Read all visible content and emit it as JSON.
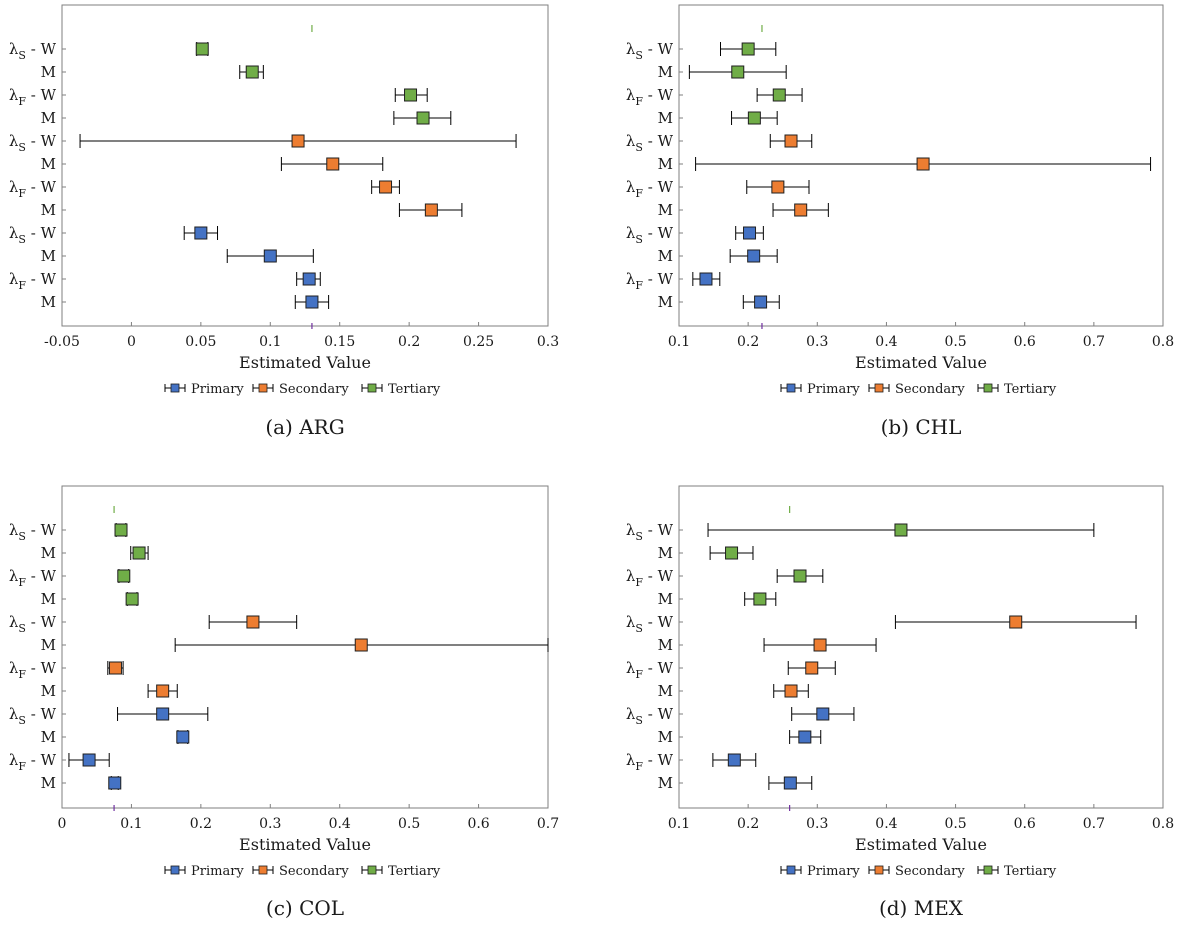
{
  "colors": {
    "primary": "#4472c4",
    "secondary": "#ed7d31",
    "tertiary": "#70ad47",
    "frame": "#7f7f7f",
    "whisker": "#000000",
    "top_tick": "#70ad47",
    "bottom_tick": "#7030a0"
  },
  "chart_data": [
    {
      "type": "errorbar",
      "caption": "(a) ARG",
      "xlabel": "Estimated Value",
      "xlim": [
        -0.05,
        0.3
      ],
      "xticks": [
        -0.05,
        0,
        0.05,
        0.1,
        0.15,
        0.2,
        0.25,
        0.3
      ],
      "xtick_labels": [
        "-0.05",
        "0",
        "0.05",
        "0.1",
        "0.15",
        "0.2",
        "0.25",
        "0.3"
      ],
      "legend": [
        "Primary",
        "Secondary",
        "Tertiary"
      ],
      "legend_position": "bottom",
      "marker_line": 0.13,
      "rows": [
        {
          "sym": "λ",
          "sub": "S",
          "lbl": "W",
          "group": "Tertiary",
          "est": 0.051,
          "lo": 0.047,
          "hi": 0.055
        },
        {
          "lbl": "M",
          "group": "Tertiary",
          "est": 0.087,
          "lo": 0.078,
          "hi": 0.095
        },
        {
          "sym": "λ",
          "sub": "F",
          "lbl": "W",
          "group": "Tertiary",
          "est": 0.201,
          "lo": 0.19,
          "hi": 0.213
        },
        {
          "lbl": "M",
          "group": "Tertiary",
          "est": 0.21,
          "lo": 0.189,
          "hi": 0.23
        },
        {
          "sym": "λ",
          "sub": "S",
          "lbl": "W",
          "group": "Secondary",
          "est": 0.12,
          "lo": -0.037,
          "hi": 0.277
        },
        {
          "lbl": "M",
          "group": "Secondary",
          "est": 0.145,
          "lo": 0.108,
          "hi": 0.181
        },
        {
          "sym": "λ",
          "sub": "F",
          "lbl": "W",
          "group": "Secondary",
          "est": 0.183,
          "lo": 0.173,
          "hi": 0.193
        },
        {
          "lbl": "M",
          "group": "Secondary",
          "est": 0.216,
          "lo": 0.193,
          "hi": 0.238
        },
        {
          "sym": "λ",
          "sub": "S",
          "lbl": "W",
          "group": "Primary",
          "est": 0.05,
          "lo": 0.038,
          "hi": 0.062
        },
        {
          "lbl": "M",
          "group": "Primary",
          "est": 0.1,
          "lo": 0.069,
          "hi": 0.131
        },
        {
          "sym": "λ",
          "sub": "F",
          "lbl": "W",
          "group": "Primary",
          "est": 0.128,
          "lo": 0.119,
          "hi": 0.136
        },
        {
          "lbl": "M",
          "group": "Primary",
          "est": 0.13,
          "lo": 0.118,
          "hi": 0.142
        }
      ]
    },
    {
      "type": "errorbar",
      "caption": "(b) CHL",
      "xlabel": "Estimated Value",
      "xlim": [
        0.1,
        0.8
      ],
      "xticks": [
        0.1,
        0.2,
        0.3,
        0.4,
        0.5,
        0.6,
        0.7,
        0.8
      ],
      "xtick_labels": [
        "0.1",
        "0.2",
        "0.3",
        "0.4",
        "0.5",
        "0.6",
        "0.7",
        "0.8"
      ],
      "legend": [
        "Primary",
        "Secondary",
        "Tertiary"
      ],
      "legend_position": "bottom",
      "marker_line": 0.22,
      "rows": [
        {
          "sym": "λ",
          "sub": "S",
          "lbl": "W",
          "group": "Tertiary",
          "est": 0.2,
          "lo": 0.16,
          "hi": 0.24
        },
        {
          "lbl": "M",
          "group": "Tertiary",
          "est": 0.185,
          "lo": 0.115,
          "hi": 0.255
        },
        {
          "sym": "λ",
          "sub": "F",
          "lbl": "W",
          "group": "Tertiary",
          "est": 0.245,
          "lo": 0.213,
          "hi": 0.278
        },
        {
          "lbl": "M",
          "group": "Tertiary",
          "est": 0.209,
          "lo": 0.176,
          "hi": 0.242
        },
        {
          "sym": "λ",
          "sub": "S",
          "lbl": "W",
          "group": "Secondary",
          "est": 0.262,
          "lo": 0.232,
          "hi": 0.292
        },
        {
          "lbl": "M",
          "group": "Secondary",
          "est": 0.453,
          "lo": 0.124,
          "hi": 0.782
        },
        {
          "sym": "λ",
          "sub": "F",
          "lbl": "W",
          "group": "Secondary",
          "est": 0.243,
          "lo": 0.198,
          "hi": 0.288
        },
        {
          "lbl": "M",
          "group": "Secondary",
          "est": 0.276,
          "lo": 0.236,
          "hi": 0.316
        },
        {
          "sym": "λ",
          "sub": "S",
          "lbl": "W",
          "group": "Primary",
          "est": 0.202,
          "lo": 0.182,
          "hi": 0.222
        },
        {
          "lbl": "M",
          "group": "Primary",
          "est": 0.208,
          "lo": 0.174,
          "hi": 0.242
        },
        {
          "sym": "λ",
          "sub": "F",
          "lbl": "W",
          "group": "Primary",
          "est": 0.139,
          "lo": 0.12,
          "hi": 0.159
        },
        {
          "lbl": "M",
          "group": "Primary",
          "est": 0.218,
          "lo": 0.193,
          "hi": 0.245
        }
      ]
    },
    {
      "type": "errorbar",
      "caption": "(c) COL",
      "xlabel": "Estimated Value",
      "xlim": [
        0,
        0.7
      ],
      "xticks": [
        0,
        0.1,
        0.2,
        0.3,
        0.4,
        0.5,
        0.6,
        0.7
      ],
      "xtick_labels": [
        "0",
        "0.1",
        "0.2",
        "0.3",
        "0.4",
        "0.5",
        "0.6",
        "0.7"
      ],
      "legend": [
        "Primary",
        "Secondary",
        "Tertiary"
      ],
      "legend_position": "bottom",
      "marker_line": 0.075,
      "rows": [
        {
          "sym": "λ",
          "sub": "S",
          "lbl": "W",
          "group": "Tertiary",
          "est": 0.085,
          "lo": 0.078,
          "hi": 0.092
        },
        {
          "lbl": "M",
          "group": "Tertiary",
          "est": 0.111,
          "lo": 0.099,
          "hi": 0.124
        },
        {
          "sym": "λ",
          "sub": "F",
          "lbl": "W",
          "group": "Tertiary",
          "est": 0.089,
          "lo": 0.082,
          "hi": 0.096
        },
        {
          "lbl": "M",
          "group": "Tertiary",
          "est": 0.101,
          "lo": 0.094,
          "hi": 0.108
        },
        {
          "sym": "λ",
          "sub": "S",
          "lbl": "W",
          "group": "Secondary",
          "est": 0.275,
          "lo": 0.212,
          "hi": 0.338
        },
        {
          "lbl": "M",
          "group": "Secondary",
          "est": 0.431,
          "lo": 0.163,
          "hi": 0.7
        },
        {
          "sym": "λ",
          "sub": "F",
          "lbl": "W",
          "group": "Secondary",
          "est": 0.077,
          "lo": 0.066,
          "hi": 0.088
        },
        {
          "lbl": "M",
          "group": "Secondary",
          "est": 0.145,
          "lo": 0.124,
          "hi": 0.166
        },
        {
          "sym": "λ",
          "sub": "S",
          "lbl": "W",
          "group": "Primary",
          "est": 0.145,
          "lo": 0.08,
          "hi": 0.21
        },
        {
          "lbl": "M",
          "group": "Primary",
          "est": 0.174,
          "lo": 0.167,
          "hi": 0.181
        },
        {
          "sym": "λ",
          "sub": "F",
          "lbl": "W",
          "group": "Primary",
          "est": 0.039,
          "lo": 0.01,
          "hi": 0.068
        },
        {
          "lbl": "M",
          "group": "Primary",
          "est": 0.076,
          "lo": 0.071,
          "hi": 0.081
        }
      ]
    },
    {
      "type": "errorbar",
      "caption": "(d) MEX",
      "xlabel": "Estimated Value",
      "xlim": [
        0.1,
        0.8
      ],
      "xticks": [
        0.1,
        0.2,
        0.3,
        0.4,
        0.5,
        0.6,
        0.7,
        0.8
      ],
      "xtick_labels": [
        "0.1",
        "0.2",
        "0.3",
        "0.4",
        "0.5",
        "0.6",
        "0.7",
        "0.8"
      ],
      "legend": [
        "Primary",
        "Secondary",
        "Tertiary"
      ],
      "legend_position": "bottom",
      "marker_line": 0.26,
      "rows": [
        {
          "sym": "λ",
          "sub": "S",
          "lbl": "W",
          "group": "Tertiary",
          "est": 0.421,
          "lo": 0.142,
          "hi": 0.7
        },
        {
          "lbl": "M",
          "group": "Tertiary",
          "est": 0.176,
          "lo": 0.145,
          "hi": 0.207
        },
        {
          "sym": "λ",
          "sub": "F",
          "lbl": "W",
          "group": "Tertiary",
          "est": 0.275,
          "lo": 0.242,
          "hi": 0.308
        },
        {
          "lbl": "M",
          "group": "Tertiary",
          "est": 0.217,
          "lo": 0.195,
          "hi": 0.24
        },
        {
          "sym": "λ",
          "sub": "S",
          "lbl": "W",
          "group": "Secondary",
          "est": 0.587,
          "lo": 0.413,
          "hi": 0.761
        },
        {
          "lbl": "M",
          "group": "Secondary",
          "est": 0.304,
          "lo": 0.223,
          "hi": 0.385
        },
        {
          "sym": "λ",
          "sub": "F",
          "lbl": "W",
          "group": "Secondary",
          "est": 0.292,
          "lo": 0.258,
          "hi": 0.326
        },
        {
          "lbl": "M",
          "group": "Secondary",
          "est": 0.262,
          "lo": 0.237,
          "hi": 0.287
        },
        {
          "sym": "λ",
          "sub": "S",
          "lbl": "W",
          "group": "Primary",
          "est": 0.308,
          "lo": 0.263,
          "hi": 0.353
        },
        {
          "lbl": "M",
          "group": "Primary",
          "est": 0.282,
          "lo": 0.26,
          "hi": 0.305
        },
        {
          "sym": "λ",
          "sub": "F",
          "lbl": "W",
          "group": "Primary",
          "est": 0.18,
          "lo": 0.149,
          "hi": 0.211
        },
        {
          "lbl": "M",
          "group": "Primary",
          "est": 0.261,
          "lo": 0.23,
          "hi": 0.292
        }
      ]
    }
  ]
}
